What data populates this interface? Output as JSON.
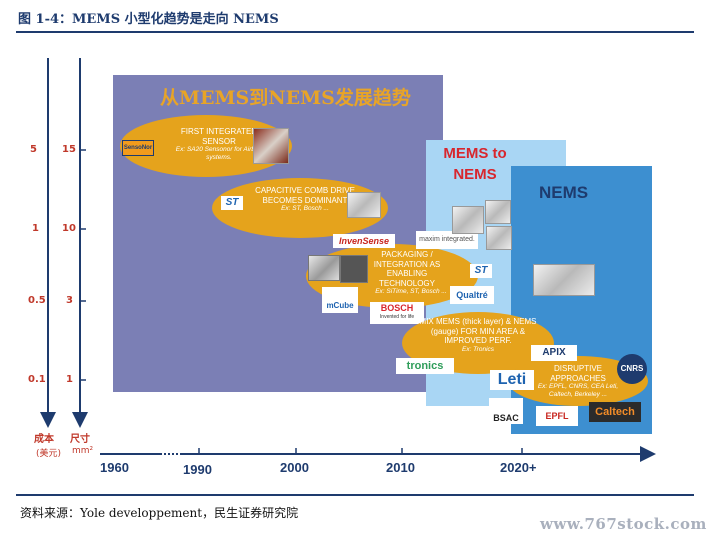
{
  "figure": {
    "title": "图 1-4：MEMS 小型化趋势是走向 NEMS",
    "source": "资料来源：Yole developpement，民生证券研究院",
    "watermark": "www.767stock.com"
  },
  "axes": {
    "cost_label": "成本",
    "cost_unit": "(美元)",
    "size_label": "尺寸",
    "size_unit": "mm²",
    "cost_ticks": [
      "5",
      "1",
      "0.5",
      "0.1"
    ],
    "size_ticks": [
      "15",
      "10",
      "3",
      "1"
    ],
    "years": [
      "1960",
      "1990",
      "2000",
      "2010",
      "2020+"
    ]
  },
  "panels": {
    "mems_title": "从MEMS到NEMS发展趋势",
    "mems_to_nems": "MEMS to NEMS",
    "nems": "NEMS"
  },
  "milestones": [
    {
      "title": "FIRST INTEGRATED SENSOR",
      "example": "Ex: SA20 Sensonor for Airbag systems."
    },
    {
      "title": "CAPACITIVE COMB DRIVE BECOMES DOMINANT",
      "example": "Ex: ST, Bosch ..."
    },
    {
      "title": "PACKAGING / INTEGRATION AS ENABLING TECHNOLOGY",
      "example": "Ex: SiTime, ST, Bosch ..."
    },
    {
      "title": "MIX MEMS (thick layer) & NEMS (gauge) FOR MIN AREA & IMPROVED PERF.",
      "example": "Ex: Tronics"
    },
    {
      "title": "DISRUPTIVE APPROACHES",
      "example": "Ex: EPFL, CNRS, CEA Leti, Caltech, Berkeley ..."
    }
  ],
  "logos": {
    "sensonor": "SensoNor",
    "st": "ST",
    "invensense": "InvenSense",
    "maxim": "maxim integrated.",
    "mcube": "mCube",
    "bosch": "BOSCH",
    "bosch_tagline": "Invented for life",
    "qualtre": "Qualtré",
    "tronics": "tronics",
    "apix": "APIX",
    "leti": "Leti",
    "cnrs": "CNRS",
    "bsac": "BSAC",
    "epfl": "EPFL",
    "caltech": "Caltech",
    "sitime": "SiTime"
  },
  "colors": {
    "title_blue": "#1e3b6e",
    "mems_panel": "#7b7fb5",
    "mems_to_nems_panel": "#a9d6f4",
    "nems_panel": "#3d8fd0",
    "oval": "#e5a31c",
    "axis_tick_red": "#c0392b"
  }
}
